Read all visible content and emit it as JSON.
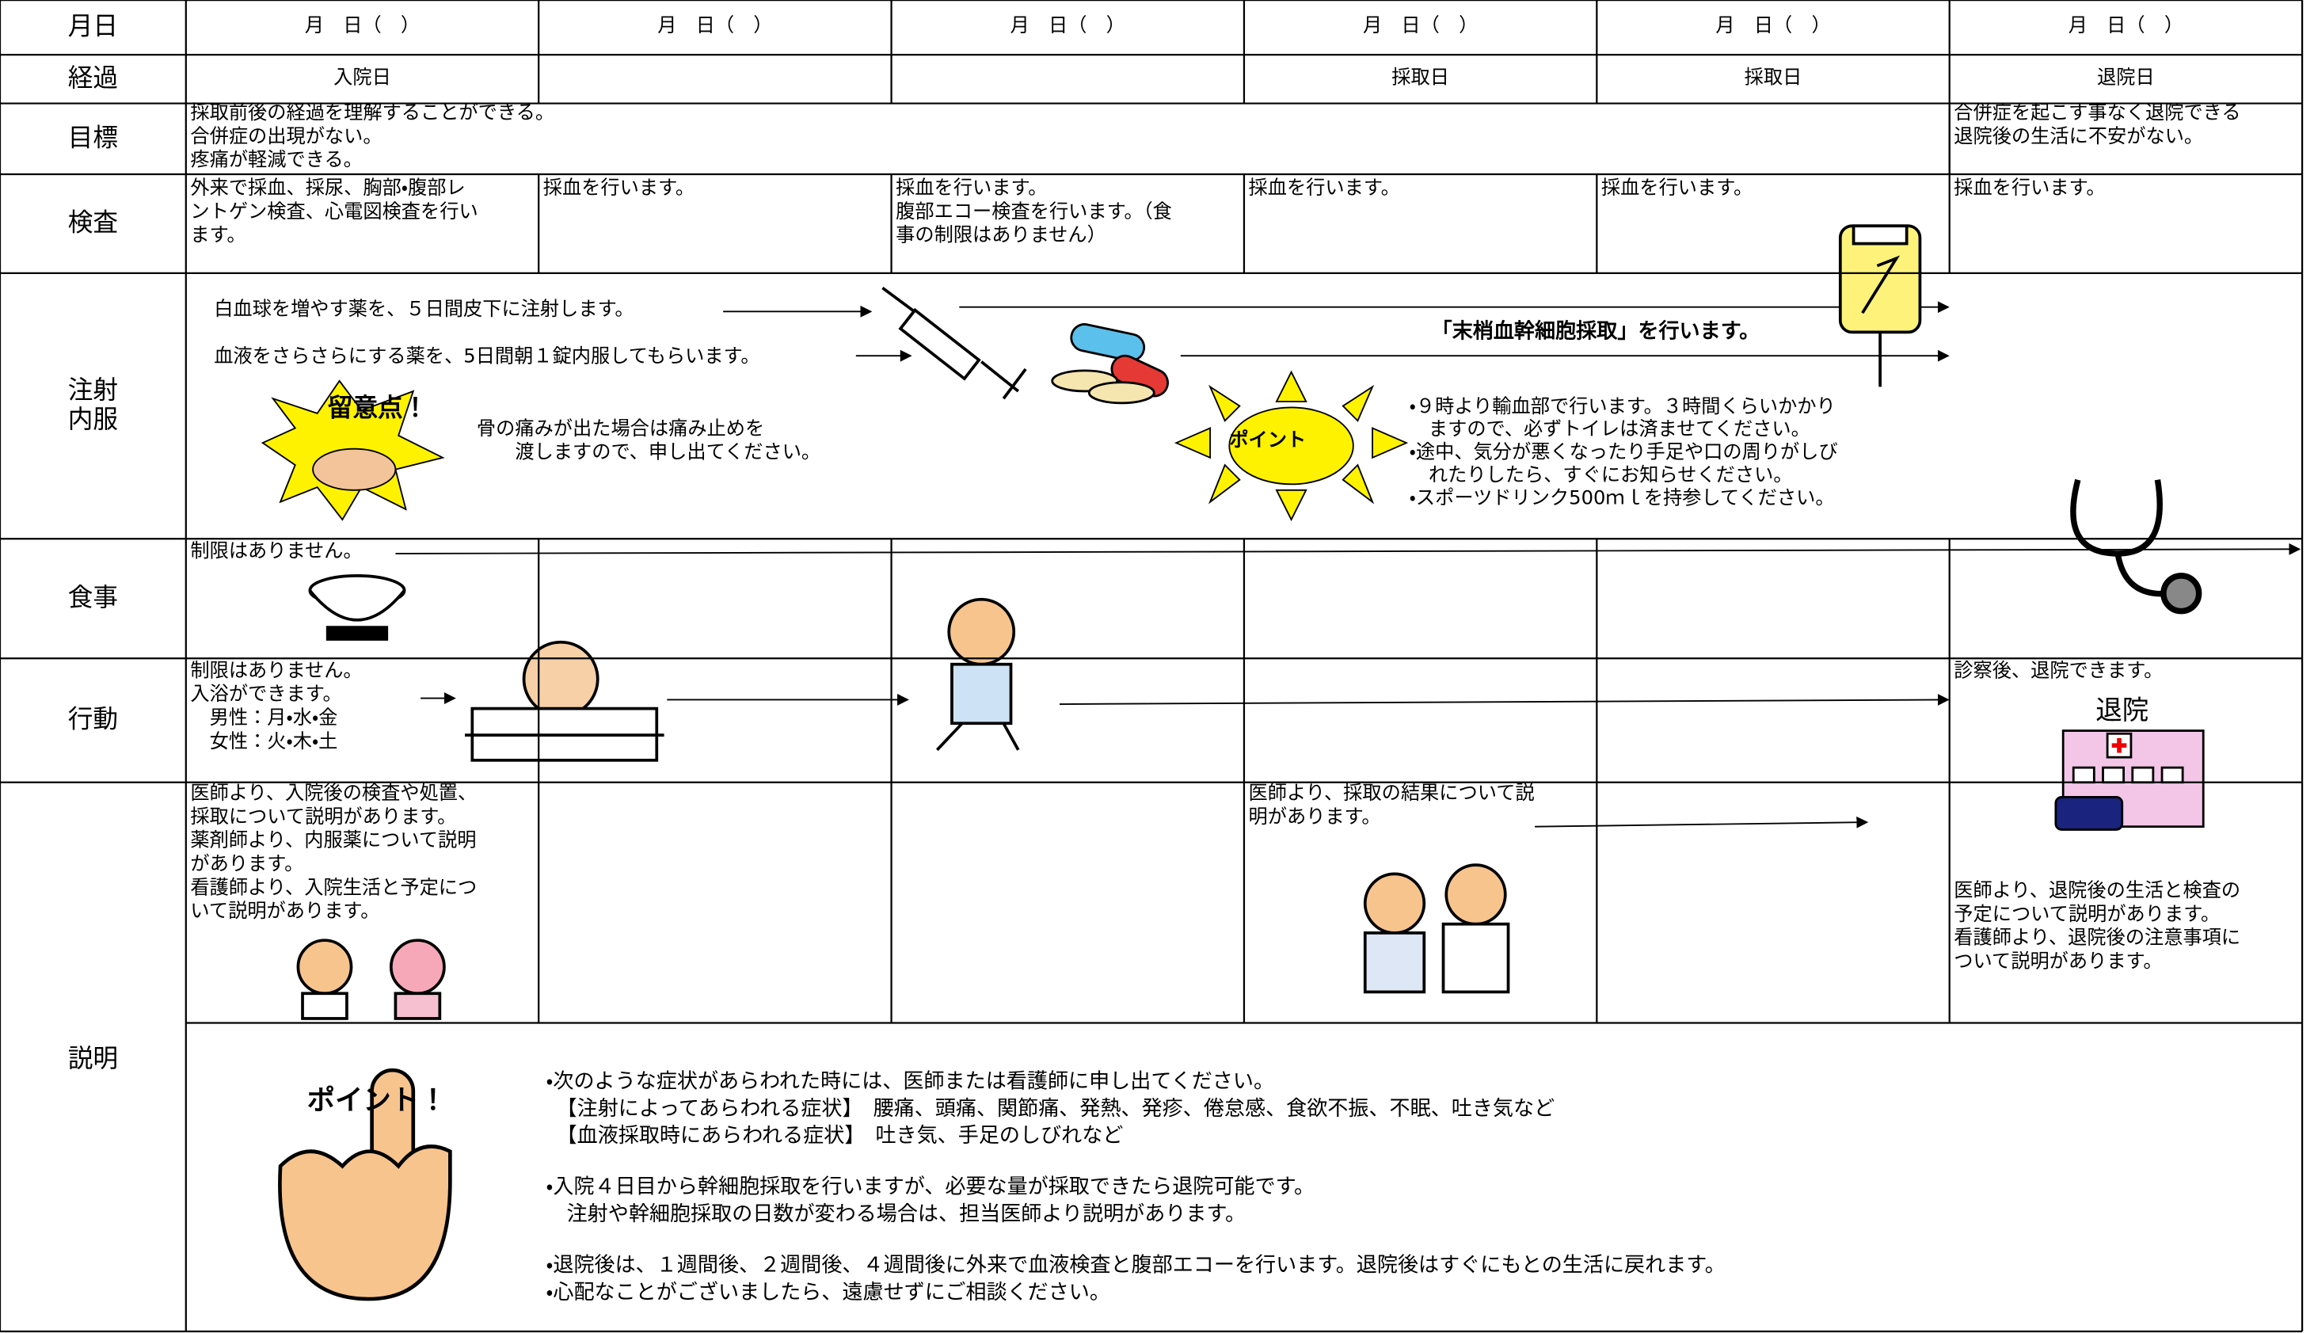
{
  "header": {
    "label": "月日",
    "dates": [
      "月　日（　）",
      "月　日（　）",
      "月　日（　）",
      "月　日（　）",
      "月　日（　）",
      "月　日（　）"
    ]
  },
  "rows": {
    "progress": {
      "label": "経過",
      "day1": "入院日",
      "day4": "採取日",
      "day5": "採取日",
      "day6": "退院日"
    },
    "goal": {
      "label": "目標",
      "days1to5": [
        "採取前後の経過を理解することができる。",
        "合併症の出現がない。",
        "疼痛が軽減できる。"
      ],
      "day6": [
        "合併症を起こす事なく退院できる",
        "退院後の生活に不安がない。"
      ]
    },
    "exam": {
      "label": "検査",
      "day1": [
        "外来で採血、採尿、胸部・腹部レ",
        "ントゲン検査、心電図検査を行い",
        "ます。"
      ],
      "day2": [
        "採血を行います。"
      ],
      "day3": [
        "採血を行います。",
        "腹部エコー検査を行います。（食",
        "事の制限はありません）"
      ],
      "day4": [
        "採血を行います。"
      ],
      "day5": [
        "採血を行います。"
      ],
      "day6": [
        "採血を行います。"
      ]
    },
    "injection": {
      "label": [
        "注射",
        "内服"
      ],
      "drug1": "白血球を増やす薬を、５日間皮下に注射します。",
      "drug2": "血液をさらさらにする薬を、5日間朝１錠内服してもらいます。",
      "caution": "留意点！",
      "caution_note": [
        "骨の痛みが出た場合は痛み止めを",
        "　　渡しますので、申し出てください。"
      ],
      "point": "ポイント",
      "procedure": "「末梢血幹細胞採取」を行います。",
      "notes": [
        "・９時より輸血部で行います。３時間くらいかかり",
        "　ますので、必ずトイレは済ませてください。",
        "・途中、気分が悪くなったり手足や口の周りがしび",
        "　れたりしたら、すぐにお知らせください。",
        "・スポーツドリンク500ｍｌを持参してください。"
      ]
    },
    "meal": {
      "label": "食事",
      "note": "制限はありません。"
    },
    "activity": {
      "label": "行動",
      "day1": [
        "制限はありません。",
        "入浴ができます。",
        "　男性：月・水・金",
        "　女性：火・木・土"
      ],
      "day6": "診察後、退院できます。",
      "hospital_sign": "退院"
    },
    "explanation": {
      "label": "説明",
      "day1": [
        "医師より、入院後の検査や処置、",
        "採取について説明があります。",
        "薬剤師より、内服薬について説明",
        "があります。",
        "看護師より、入院生活と予定につ",
        "いて説明があります。"
      ],
      "day4": [
        "医師より、採取の結果について説",
        "明があります。"
      ],
      "day6": [
        "医師より、退院後の生活と検査の",
        "予定について説明があります。",
        "看護師より、退院後の注意事項に",
        "ついて説明があります。"
      ],
      "point": "ポイント！",
      "notes": [
        [
          "・次のような症状があらわれた時には、医師または看護師に申し出てください。",
          "　【注射によってあらわれる症状】　腰痛、頭痛、関節痛、発熱、発疹、倦怠感、食欲不振、不眠、吐き気など",
          "　【血液採取時にあらわれる症状】　吐き気、手足のしびれなど"
        ],
        [
          "・入院４日目から幹細胞採取を行いますが、必要な量が採取できたら退院可能です。",
          "　注射や幹細胞採取の日数が変わる場合は、担当医師より説明があります。"
        ],
        [
          "・退院後は、１週間後、２週間後、４週間後に外来で血液検査と腹部エコーを行います。退院後はすぐにもとの生活に戻れます。",
          "・心配なことがございましたら、遠慮せずにご相談ください。"
        ]
      ]
    }
  }
}
